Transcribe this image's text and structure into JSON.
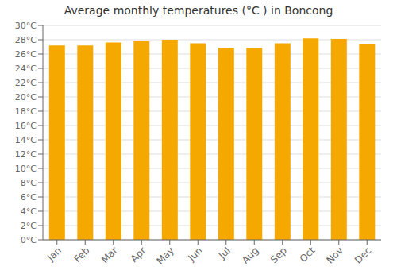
{
  "chart_data": {
    "type": "bar",
    "title": "Average monthly temperatures (°C ) in Boncong",
    "categories": [
      "Jan",
      "Feb",
      "Mar",
      "Apr",
      "May",
      "Jun",
      "Jul",
      "Aug",
      "Sep",
      "Oct",
      "Nov",
      "Dec"
    ],
    "values": [
      27.2,
      27.2,
      27.6,
      27.8,
      28.0,
      27.5,
      26.9,
      26.9,
      27.5,
      28.2,
      28.1,
      27.4
    ],
    "color": "#F5A800",
    "ylim": [
      0,
      30
    ],
    "yticks": [
      {
        "value": 0,
        "label": "0°C"
      },
      {
        "value": 2,
        "label": "2°C"
      },
      {
        "value": 4,
        "label": "4°C"
      },
      {
        "value": 6,
        "label": "6°C"
      },
      {
        "value": 8,
        "label": "8°C"
      },
      {
        "value": 10,
        "label": "10°C"
      },
      {
        "value": 12,
        "label": "12°C"
      },
      {
        "value": 14,
        "label": "14°C"
      },
      {
        "value": 16,
        "label": "16°C"
      },
      {
        "value": 18,
        "label": "18°C"
      },
      {
        "value": 20,
        "label": "20°C"
      },
      {
        "value": 22,
        "label": "22°C"
      },
      {
        "value": 24,
        "label": "24°C"
      },
      {
        "value": 26,
        "label": "26°C"
      },
      {
        "value": 28,
        "label": "28°C"
      },
      {
        "value": 30,
        "label": "30°C"
      }
    ],
    "grid": true
  }
}
